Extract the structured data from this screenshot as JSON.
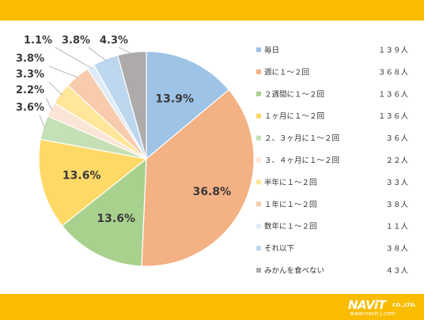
{
  "chart_data": {
    "type": "pie",
    "start_angle_deg": 0,
    "direction": "clockwise",
    "slices": [
      {
        "label": "毎日",
        "count": "１３９人",
        "value": 13.9,
        "value_label": "13.9%",
        "color": "#9dc3e6"
      },
      {
        "label": "週に１～２回",
        "count": "３６８人",
        "value": 36.8,
        "value_label": "36.8%",
        "color": "#f4b183"
      },
      {
        "label": "２週間に１～２回",
        "count": "１３６人",
        "value": 13.6,
        "value_label": "13.6%",
        "color": "#a9d18e"
      },
      {
        "label": "１ヶ月に１～２回",
        "count": "１３６人",
        "value": 13.6,
        "value_label": "13.6%",
        "color": "#ffd966"
      },
      {
        "label": "２、３ヶ月に１～２回",
        "count": "３６人",
        "value": 3.6,
        "value_label": "3.6%",
        "color": "#c5e0b4"
      },
      {
        "label": "３、４ヶ月に１～２回",
        "count": "２２人",
        "value": 2.2,
        "value_label": "2.2%",
        "color": "#fbe5d6"
      },
      {
        "label": "半年に１～２回",
        "count": "３３人",
        "value": 3.3,
        "value_label": "3.3%",
        "color": "#ffe699"
      },
      {
        "label": "１年に１～２回",
        "count": "３８人",
        "value": 3.8,
        "value_label": "3.8%",
        "color": "#f8cbad"
      },
      {
        "label": "数年に１～２回",
        "count": "１１人",
        "value": 1.1,
        "value_label": "1.1%",
        "color": "#deebf7"
      },
      {
        "label": "それ以下",
        "count": "３８人",
        "value": 3.8,
        "value_label": "3.8%",
        "color": "#bdd7ee"
      },
      {
        "label": "みかんを食べない",
        "count": "４３人",
        "value": 4.3,
        "value_label": "4.3%",
        "color": "#aeaaaa"
      }
    ],
    "legend_position": "right"
  },
  "branding": {
    "logo_text": "NAViT",
    "logo_suffix": "CO.,LTD.",
    "logo_url": "www.navit-j.com",
    "bar_color": "#f9bc00"
  }
}
